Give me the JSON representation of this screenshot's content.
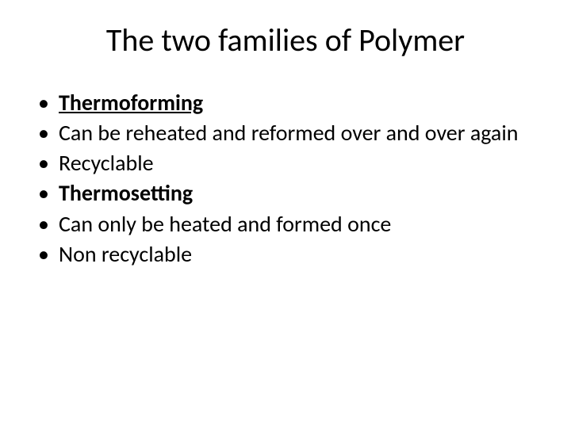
{
  "title": "The two families of Polymer",
  "bullets": [
    {
      "text": "Thermoforming",
      "bold": true,
      "underline": true
    },
    {
      "text": "Can be reheated and reformed over and over again",
      "bold": false,
      "underline": false
    },
    {
      "text": "Recyclable",
      "bold": false,
      "underline": false
    },
    {
      "text": "Thermosetting",
      "bold": true,
      "underline": false
    },
    {
      "text": "Can only be heated and formed once",
      "bold": false,
      "underline": false
    },
    {
      "text": "Non recyclable",
      "bold": false,
      "underline": false
    }
  ],
  "style": {
    "background_color": "#ffffff",
    "text_color": "#000000",
    "title_fontsize": 40,
    "body_fontsize": 28,
    "font_family": "Calibri"
  }
}
